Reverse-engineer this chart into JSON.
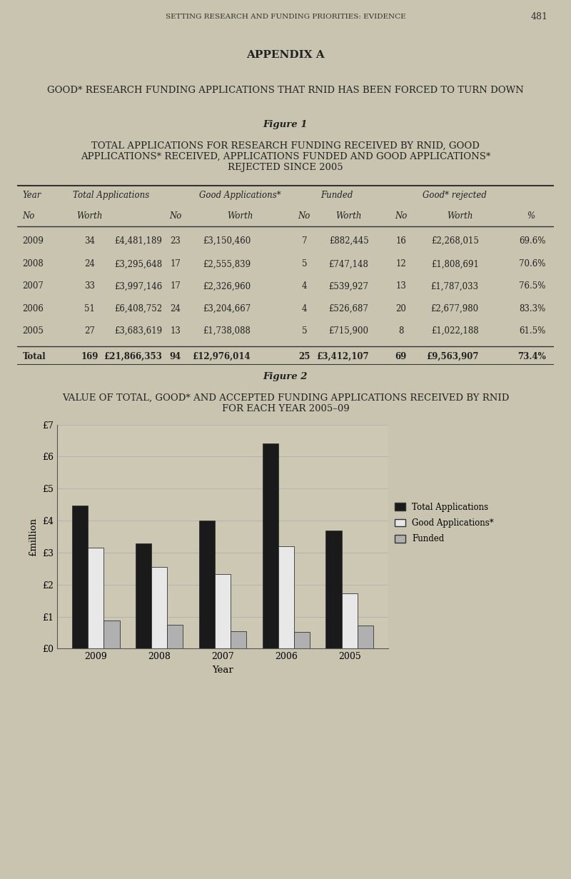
{
  "page_header": "SETTING RESEARCH AND FUNDING PRIORITIES: EVIDENCE",
  "page_number": "481",
  "appendix_title": "APPENDIX A",
  "subtitle": "GOOD* RESEARCH FUNDING APPLICATIONS THAT RNID HAS BEEN FORCED TO TURN DOWN",
  "figure1_label": "Figure 1",
  "figure1_title": "TOTAL APPLICATIONS FOR RESEARCH FUNDING RECEIVED BY RNID, GOOD\nAPPLICATIONS* RECEIVED, APPLICATIONS FUNDED AND GOOD APPLICATIONS*\nREJECTED SINCE 2005",
  "table_data": [
    [
      "2009",
      "34",
      "£4,481,189",
      "23",
      "£3,150,460",
      "7",
      "£882,445",
      "16",
      "£2,268,015",
      "69.6%"
    ],
    [
      "2008",
      "24",
      "£3,295,648",
      "17",
      "£2,555,839",
      "5",
      "£747,148",
      "12",
      "£1,808,691",
      "70.6%"
    ],
    [
      "2007",
      "33",
      "£3,997,146",
      "17",
      "£2,326,960",
      "4",
      "£539,927",
      "13",
      "£1,787,033",
      "76.5%"
    ],
    [
      "2006",
      "51",
      "£6,408,752",
      "24",
      "£3,204,667",
      "4",
      "£526,687",
      "20",
      "£2,677,980",
      "83.3%"
    ],
    [
      "2005",
      "27",
      "£3,683,619",
      "13",
      "£1,738,088",
      "5",
      "£715,900",
      "8",
      "£1,022,188",
      "61.5%"
    ]
  ],
  "table_total": [
    "Total",
    "169",
    "£21,866,353",
    "94",
    "£12,976,014",
    "25",
    "£3,412,107",
    "69",
    "£9,563,907",
    "73.4%"
  ],
  "figure2_label": "Figure 2",
  "figure2_title": "VALUE OF TOTAL, GOOD* AND ACCEPTED FUNDING APPLICATIONS RECEIVED BY RNID\nFOR EACH YEAR 2005–09",
  "chart_years": [
    "2009",
    "2008",
    "2007",
    "2006",
    "2005"
  ],
  "total_applications": [
    4.481189,
    3.295648,
    3.997146,
    6.408752,
    3.683619
  ],
  "good_applications": [
    3.15046,
    2.555839,
    2.32696,
    3.204667,
    1.738088
  ],
  "funded": [
    0.882445,
    0.747148,
    0.539927,
    0.526687,
    0.7159
  ],
  "bar_color_total": "#1a1a1a",
  "bar_color_good": "#e8e8e8",
  "bar_color_funded": "#b0b0b0",
  "bar_edge_color": "#333333",
  "legend_labels": [
    "Total Applications",
    "Good Applications*",
    "Funded"
  ],
  "ylabel": "£million",
  "xlabel": "Year",
  "yticks": [
    0,
    1,
    2,
    3,
    4,
    5,
    6,
    7
  ],
  "ytick_labels": [
    "£0",
    "£1",
    "£2",
    "£3",
    "£4",
    "£5",
    "£6",
    "£7"
  ],
  "ylim": [
    0,
    7
  ],
  "background_color": "#c8c4b0",
  "chart_bg": "#ccc8b4"
}
